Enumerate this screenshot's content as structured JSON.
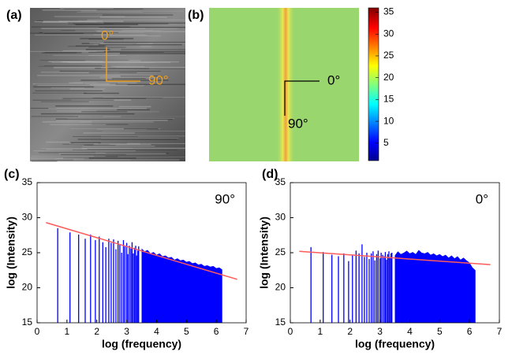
{
  "images": [
    {
      "label": "(a)",
      "annotations": [
        "0°",
        "90°"
      ]
    },
    {
      "label": "(b)",
      "annotations": [
        "0°",
        "90°"
      ],
      "colorbar": {
        "lim": [
          1,
          36
        ],
        "ticks": [
          5,
          10,
          15,
          20,
          25,
          30,
          35
        ]
      }
    }
  ],
  "chart_data": [
    {
      "type": "bar",
      "label": "(c)",
      "annotation": "90°",
      "xlabel": "log (frequency)",
      "ylabel": "log (Intensity)",
      "xlim": [
        0,
        7
      ],
      "xticks": [
        0,
        1,
        2,
        3,
        4,
        5,
        6,
        7
      ],
      "ylim": [
        15,
        35
      ],
      "yticks": [
        15,
        20,
        25,
        30,
        35
      ],
      "series": [
        {
          "type": "bar",
          "color": "#0000ff",
          "x": [
            0.69,
            1.1,
            1.39,
            1.61,
            1.79,
            1.95,
            2.08,
            2.2,
            2.3,
            2.4,
            2.48,
            2.56,
            2.64,
            2.71,
            2.77,
            2.83,
            2.89,
            2.94,
            3.0,
            3.04,
            3.09,
            3.14,
            3.18,
            3.22,
            3.26,
            3.3,
            3.33,
            3.37,
            3.4
          ],
          "values": [
            28.5,
            27.9,
            27.6,
            27.0,
            27.6,
            26.8,
            27.3,
            26.5,
            25.8,
            27.0,
            26.4,
            26.9,
            25.5,
            26.7,
            26.2,
            25.0,
            26.8,
            25.9,
            26.4,
            24.8,
            26.0,
            25.6,
            26.5,
            24.9,
            25.7,
            26.0,
            24.6,
            25.3,
            25.9
          ]
        },
        {
          "type": "area",
          "color": "#0000ff",
          "x": [
            3.5,
            3.6,
            3.7,
            3.8,
            3.9,
            4.0,
            4.1,
            4.2,
            4.3,
            4.4,
            4.5,
            4.6,
            4.7,
            4.8,
            4.9,
            5.0,
            5.1,
            5.2,
            5.3,
            5.4,
            5.5,
            5.6,
            5.7,
            5.8,
            5.9,
            6.0,
            6.1,
            6.2
          ],
          "values": [
            25.6,
            25.2,
            25.4,
            24.9,
            25.1,
            24.7,
            24.9,
            24.5,
            24.6,
            24.3,
            24.4,
            24.0,
            24.2,
            23.9,
            24.0,
            23.7,
            23.8,
            23.5,
            23.6,
            23.3,
            23.4,
            23.1,
            23.2,
            23.0,
            23.1,
            22.8,
            22.9,
            22.6
          ]
        },
        {
          "type": "line",
          "color": "#ff5a5a",
          "x": [
            0.3,
            6.7
          ],
          "values": [
            29.3,
            21.2
          ]
        }
      ]
    },
    {
      "type": "bar",
      "label": "(d)",
      "annotation": "0°",
      "xlabel": "log (frequency)",
      "ylabel": "log (Intensity)",
      "xlim": [
        0,
        7
      ],
      "xticks": [
        0,
        1,
        2,
        3,
        4,
        5,
        6,
        7
      ],
      "ylim": [
        15,
        35
      ],
      "yticks": [
        15,
        20,
        25,
        30,
        35
      ],
      "series": [
        {
          "type": "bar",
          "color": "#0000ff",
          "x": [
            0.69,
            1.1,
            1.39,
            1.61,
            1.79,
            1.95,
            2.08,
            2.2,
            2.3,
            2.4,
            2.48,
            2.56,
            2.64,
            2.71,
            2.77,
            2.83,
            2.89,
            2.94,
            3.0,
            3.04,
            3.09,
            3.14,
            3.18,
            3.22,
            3.26,
            3.3,
            3.33,
            3.37,
            3.4
          ],
          "values": [
            25.8,
            25.1,
            24.7,
            24.5,
            24.9,
            23.8,
            24.6,
            25.3,
            24.9,
            26.2,
            24.4,
            25.0,
            24.1,
            24.9,
            25.2,
            23.9,
            24.8,
            25.3,
            24.2,
            25.0,
            24.7,
            24.5,
            25.1,
            24.0,
            24.8,
            25.2,
            24.4,
            24.9,
            25.0
          ]
        },
        {
          "type": "area",
          "color": "#0000ff",
          "x": [
            3.5,
            3.6,
            3.7,
            3.8,
            3.9,
            4.0,
            4.1,
            4.2,
            4.3,
            4.4,
            4.5,
            4.6,
            4.7,
            4.8,
            4.9,
            5.0,
            5.1,
            5.2,
            5.3,
            5.4,
            5.5,
            5.6,
            5.7,
            5.8,
            5.9,
            6.0,
            6.1,
            6.2
          ],
          "values": [
            24.6,
            25.2,
            24.8,
            25.0,
            25.3,
            24.9,
            25.1,
            24.8,
            25.4,
            25.0,
            24.9,
            25.1,
            24.7,
            24.9,
            24.6,
            24.8,
            24.5,
            24.7,
            24.3,
            24.6,
            24.2,
            24.5,
            24.0,
            24.3,
            23.9,
            23.6,
            22.9,
            22.5
          ]
        },
        {
          "type": "line",
          "color": "#ff5a5a",
          "x": [
            0.3,
            6.7
          ],
          "values": [
            25.2,
            23.3
          ]
        }
      ]
    }
  ]
}
